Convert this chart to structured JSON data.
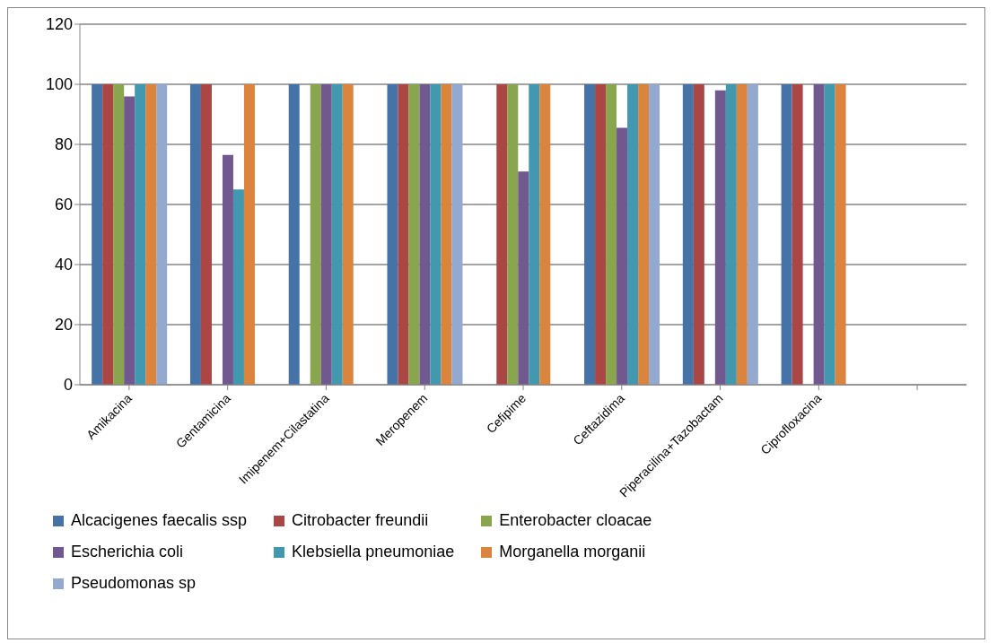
{
  "chart_data": {
    "type": "bar",
    "categories": [
      "Amikacina",
      "Gentamicina",
      "Imipenem+Cilastatina",
      "Meropenem",
      "Cefipime",
      "Ceftazidima",
      "Piperacilina+Tazobactam",
      "Ciprofloxacina",
      null
    ],
    "series": [
      {
        "name": "Alcacigenes faecalis ssp",
        "color": "#4572a7",
        "values": [
          100,
          100,
          100,
          100,
          null,
          100,
          100,
          100,
          null
        ]
      },
      {
        "name": "Citrobacter freundii",
        "color": "#aa4643",
        "values": [
          100,
          100,
          null,
          100,
          100,
          100,
          100,
          100,
          null
        ]
      },
      {
        "name": "Enterobacter cloacae",
        "color": "#89a54e",
        "values": [
          100,
          null,
          100,
          100,
          100,
          100,
          null,
          null,
          null
        ]
      },
      {
        "name": "Escherichia coli",
        "color": "#71588f",
        "values": [
          96,
          76.5,
          100,
          100,
          71,
          85.5,
          98,
          100,
          null
        ]
      },
      {
        "name": "Klebsiella pneumoniae",
        "color": "#4198af",
        "values": [
          100,
          65,
          100,
          100,
          100,
          100,
          100,
          100,
          null
        ]
      },
      {
        "name": "Morganella morganii",
        "color": "#db843d",
        "values": [
          100,
          100,
          100,
          100,
          100,
          100,
          100,
          100,
          null
        ]
      },
      {
        "name": "Pseudomonas sp",
        "color": "#93a9cf",
        "values": [
          100,
          null,
          null,
          100,
          null,
          100,
          100,
          null,
          null
        ]
      }
    ],
    "ylim": [
      0,
      120
    ],
    "yticks": [
      0,
      20,
      40,
      60,
      80,
      100,
      120
    ],
    "grid": "y",
    "legend": "bottom"
  }
}
